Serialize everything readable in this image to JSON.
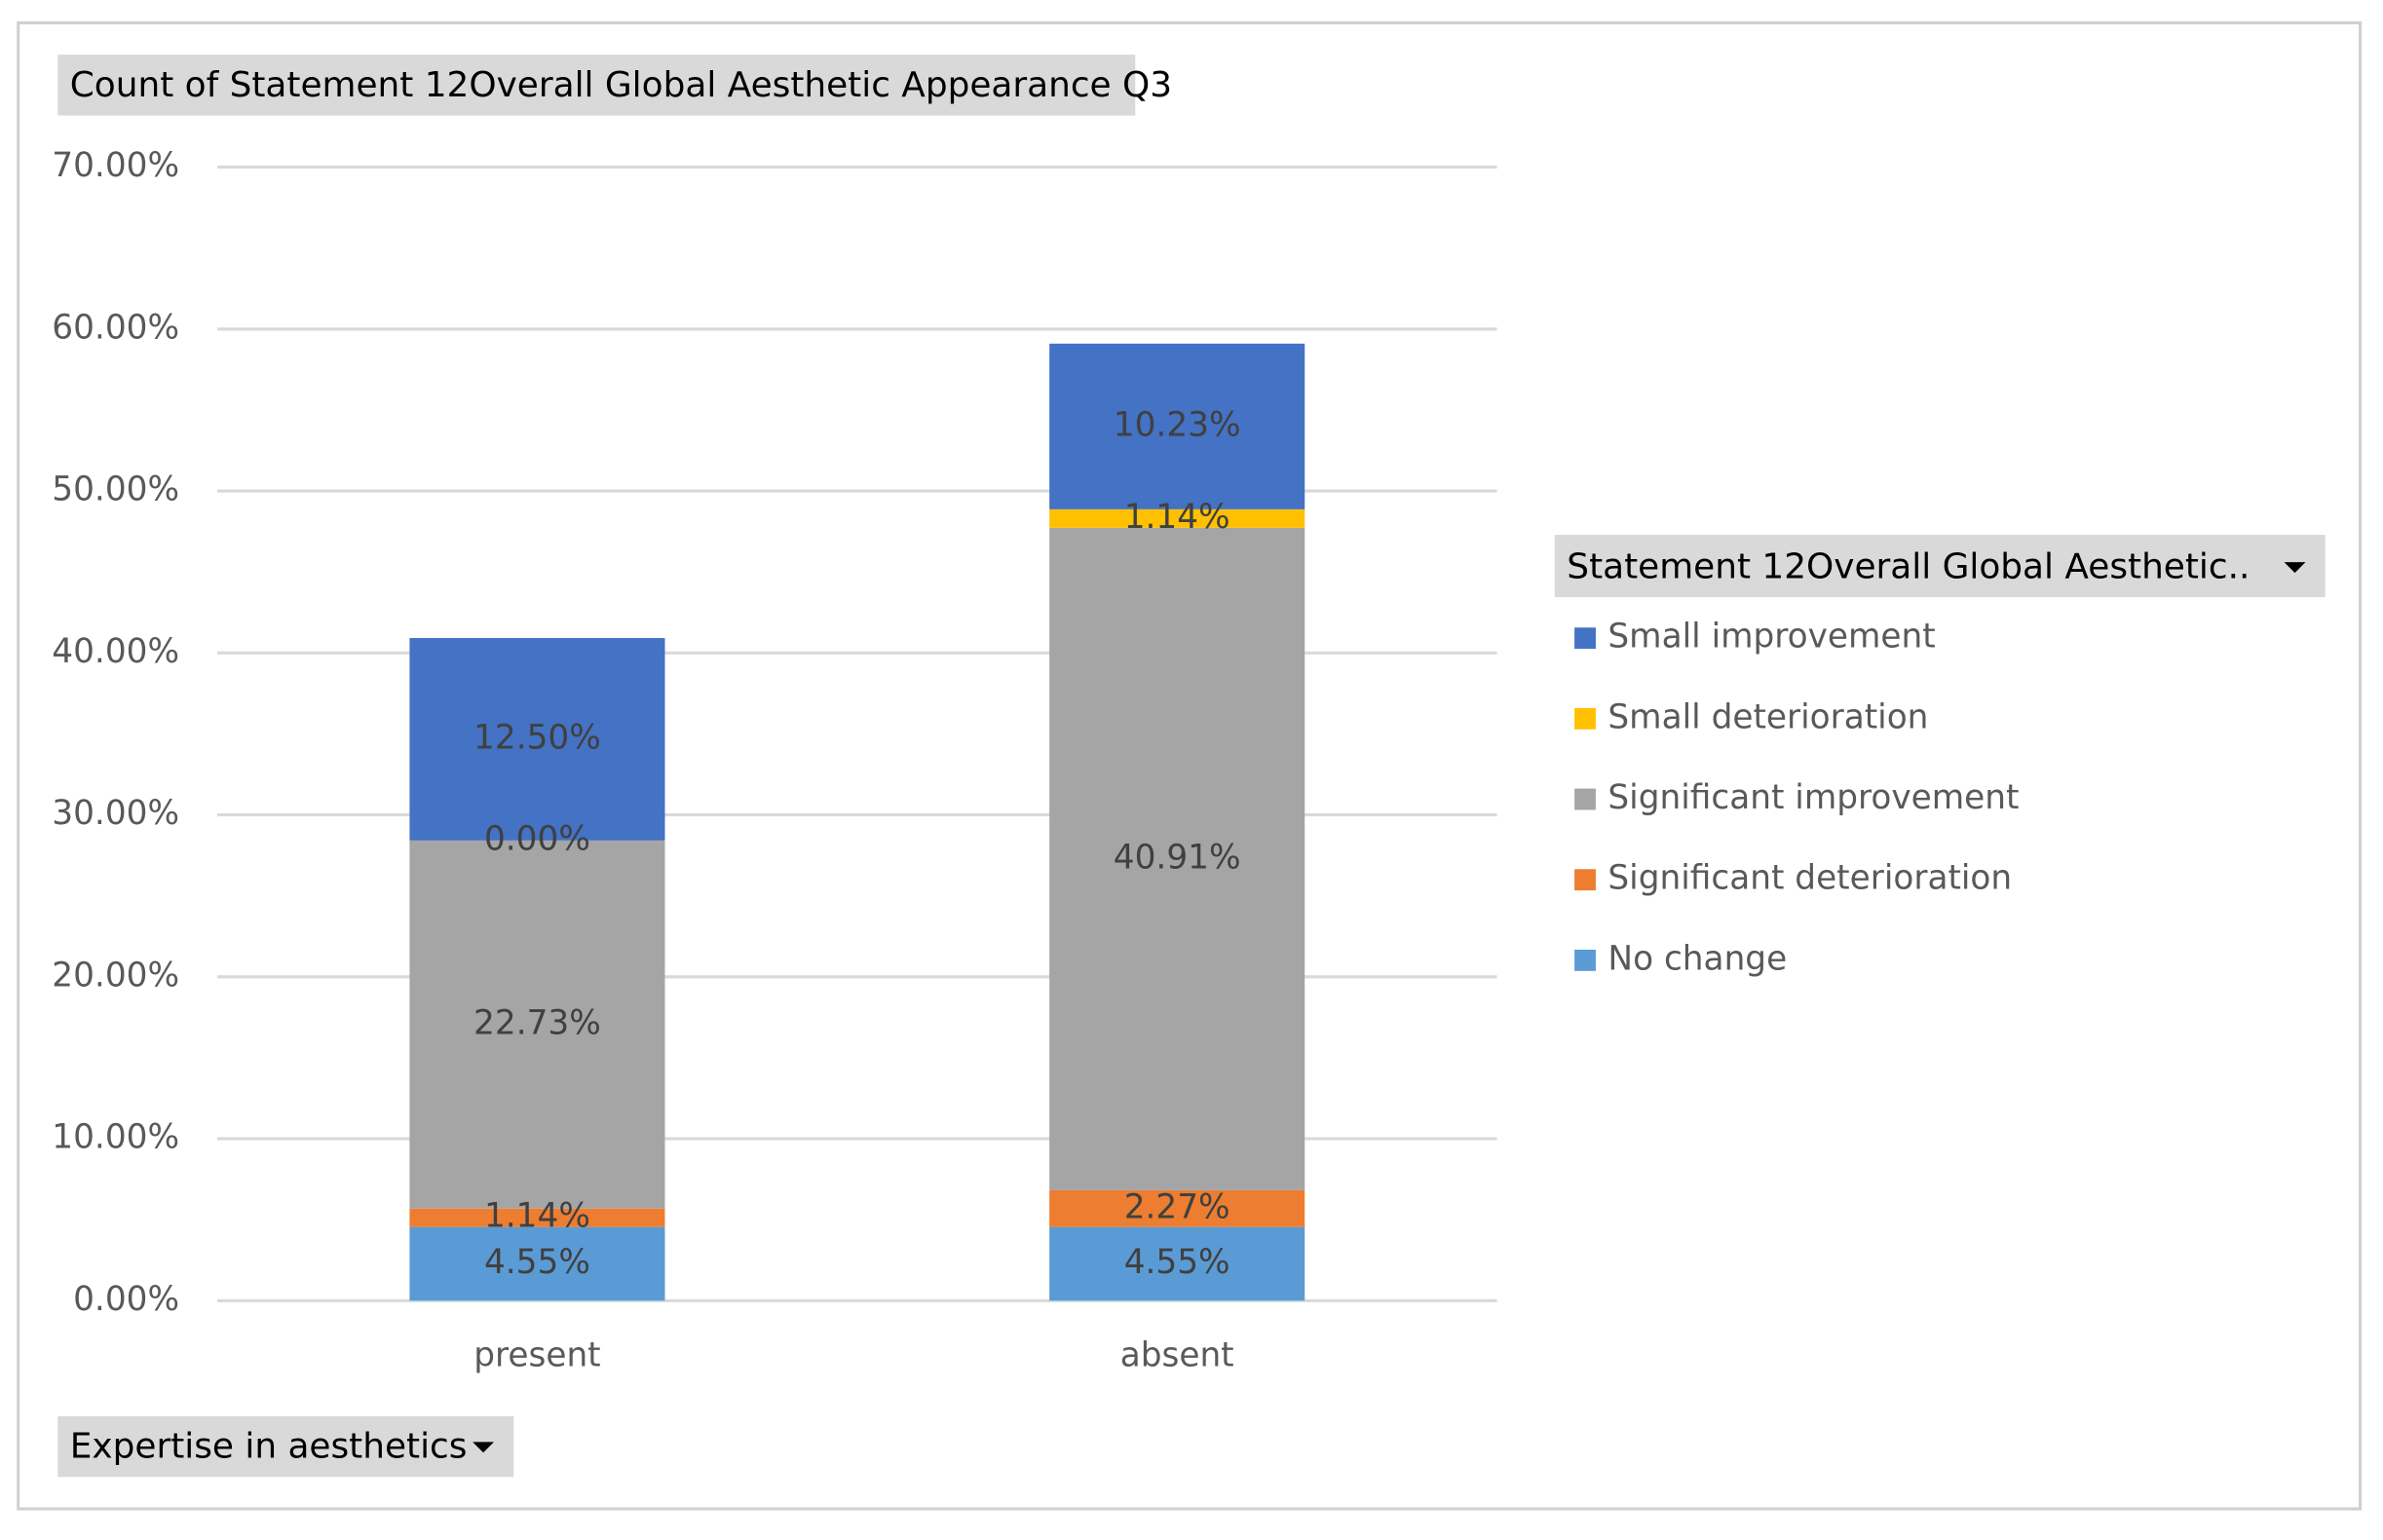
{
  "chart_data": {
    "type": "stacked_bar",
    "title": "Count of Statement 12Overall Global Aesthetic Appearance Q3",
    "legend_title": "Statement 12Overall Global Aesthetic..",
    "x_label": "Expertise in aesthetics",
    "categories": [
      "present",
      "absent"
    ],
    "series": [
      {
        "name": "No change",
        "color": "#5b9bd5",
        "values": [
          4.55,
          4.55
        ],
        "value_labels": [
          "4.55%",
          "4.55%"
        ]
      },
      {
        "name": "Significant deterioration",
        "color": "#ed7d31",
        "values": [
          1.14,
          2.27
        ],
        "value_labels": [
          "1.14%",
          "2.27%"
        ]
      },
      {
        "name": "Significant improvement",
        "color": "#a5a5a5",
        "values": [
          22.73,
          40.91
        ],
        "value_labels": [
          "22.73%",
          "40.91%"
        ]
      },
      {
        "name": "Small deterioration",
        "color": "#ffc000",
        "values": [
          0.0,
          1.14
        ],
        "value_labels": [
          "0.00%",
          "1.14%"
        ]
      },
      {
        "name": "Small improvement",
        "color": "#4472c4",
        "values": [
          12.5,
          10.23
        ],
        "value_labels": [
          "12.50%",
          "10.23%"
        ]
      }
    ],
    "ylim": [
      0,
      70
    ],
    "yticks": [
      {
        "value": 0,
        "label": "0.00%"
      },
      {
        "value": 10,
        "label": "10.00%"
      },
      {
        "value": 20,
        "label": "20.00%"
      },
      {
        "value": 30,
        "label": "30.00%"
      },
      {
        "value": 40,
        "label": "40.00%"
      },
      {
        "value": 50,
        "label": "50.00%"
      },
      {
        "value": 60,
        "label": "60.00%"
      },
      {
        "value": 70,
        "label": "70.00%"
      }
    ],
    "grid": true,
    "legend": "right"
  }
}
